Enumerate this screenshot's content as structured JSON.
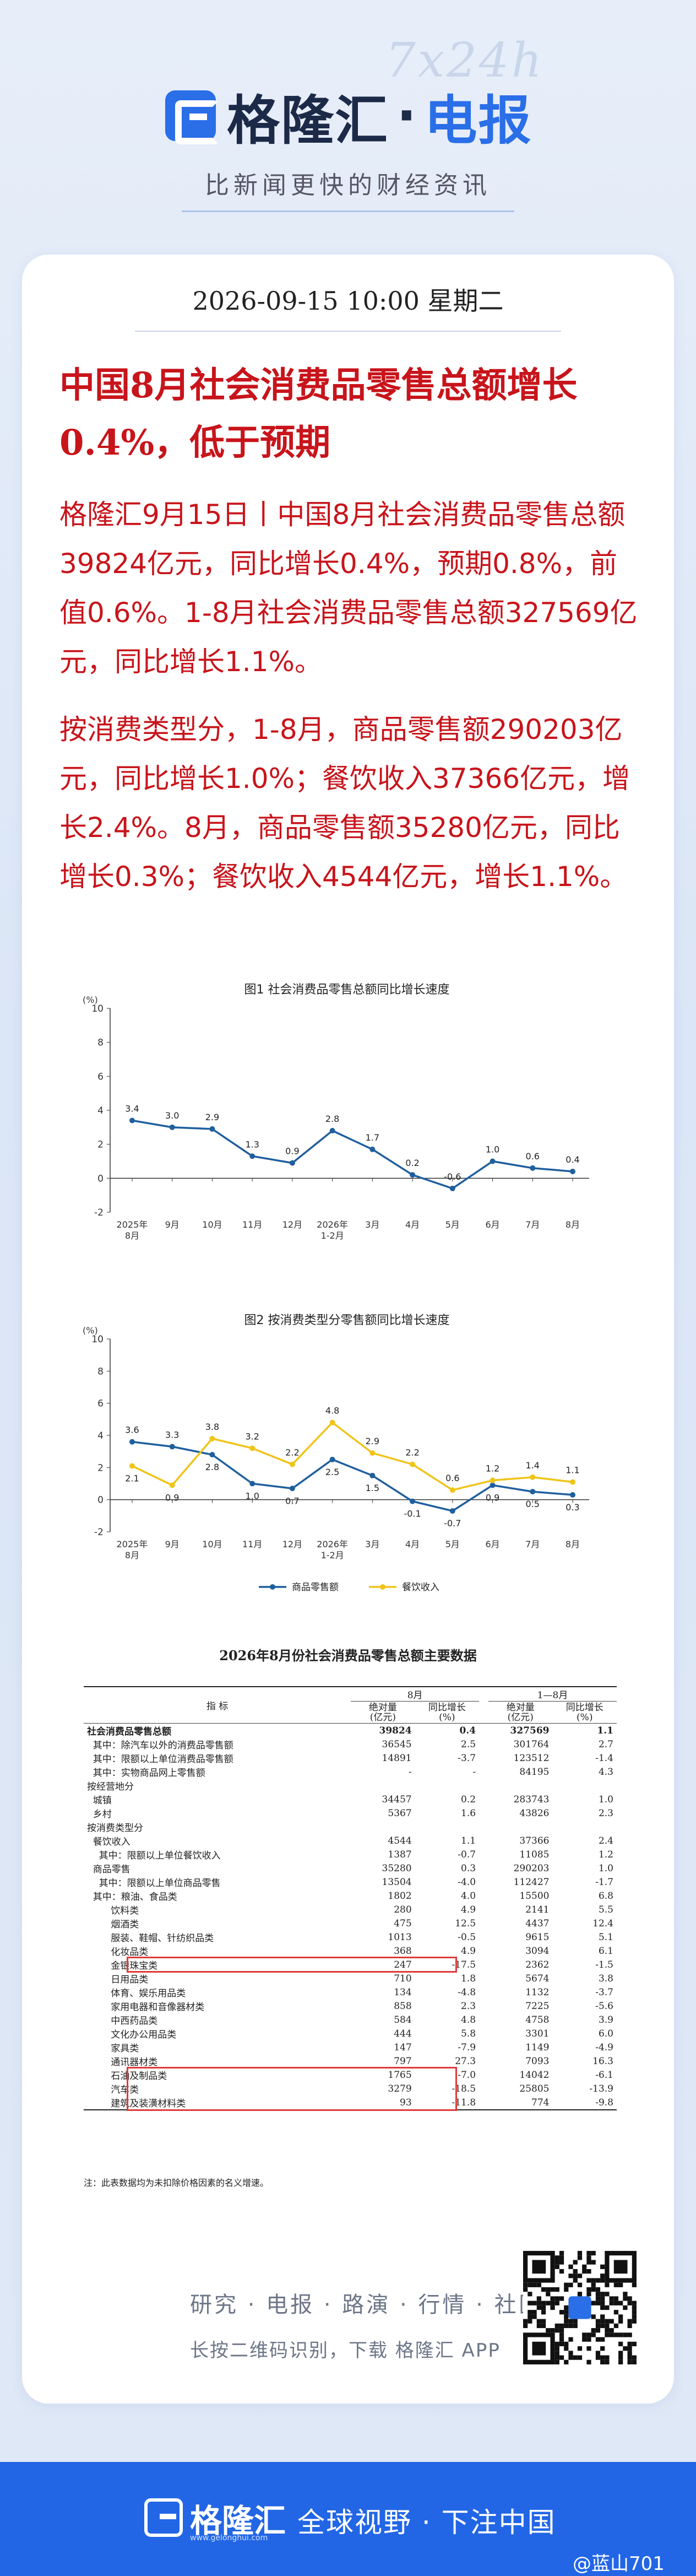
{
  "header": {
    "watermark": "7x24h",
    "brand_name": "格隆汇",
    "brand_dot": "·",
    "brand_sub": "电报",
    "tagline": "比新闻更快的财经资讯"
  },
  "article": {
    "datetime": "2026-09-15 10:00 星期二",
    "headline": "中国8月社会消费品零售总额增长0.4%，低于预期",
    "para1": "格隆汇9月15日丨中国8月社会消费品零售总额39824亿元，同比增长0.4%，预期0.8%，前值0.6%。1-8月社会消费品零售总额327569亿元，同比增长1.1%。",
    "para2": "按消费类型分，1-8月，商品零售额290203亿元，同比增长1.0%；餐饮收入37366亿元，增长2.4%。8月，商品零售额35280亿元，同比增长0.3%；餐饮收入4544亿元，增长1.1%。"
  },
  "chart_data": [
    {
      "type": "line",
      "title": "图1  社会消费品零售总额同比增长速度",
      "ylabel": "(%)",
      "ylim": [
        -2,
        10
      ],
      "yticks": [
        -2,
        0,
        2,
        4,
        6,
        8,
        10
      ],
      "categories": [
        "2025年\n8月",
        "9月",
        "10月",
        "11月",
        "12月",
        "2026年\n1-2月",
        "3月",
        "4月",
        "5月",
        "6月",
        "7月",
        "8月"
      ],
      "series": [
        {
          "values": [
            3.4,
            3.0,
            2.9,
            1.3,
            0.9,
            2.8,
            1.7,
            0.2,
            -0.6,
            1.0,
            0.6,
            0.4
          ],
          "color": "#1f5f9e"
        }
      ],
      "grid": false
    },
    {
      "type": "line",
      "title": "图2  按消费类型分零售额同比增长速度",
      "ylabel": "(%)",
      "ylim": [
        -2,
        10
      ],
      "yticks": [
        -2,
        0,
        2,
        4,
        6,
        8,
        10
      ],
      "categories": [
        "2025年\n8月",
        "9月",
        "10月",
        "11月",
        "12月",
        "2026年\n1-2月",
        "3月",
        "4月",
        "5月",
        "6月",
        "7月",
        "8月"
      ],
      "series": [
        {
          "name": "商品零售额",
          "values": [
            3.6,
            3.3,
            2.8,
            1.0,
            0.7,
            2.5,
            1.5,
            -0.1,
            -0.7,
            0.9,
            0.5,
            0.3
          ],
          "color": "#1f5f9e"
        },
        {
          "name": "餐饮收入",
          "values": [
            2.1,
            0.9,
            3.8,
            3.2,
            2.2,
            4.8,
            2.9,
            2.2,
            0.6,
            1.2,
            1.4,
            1.1
          ],
          "color": "#f0c419"
        }
      ],
      "legend": "bottom",
      "grid": false
    },
    {
      "type": "table",
      "title": "2026年8月份社会消费品零售总额主要数据",
      "header": {
        "indicator": "指    标",
        "group_month": "8月",
        "group_ytd": "1—8月",
        "abs_value": "绝对量\n(亿元)",
        "yoy": "同比增长\n(%)"
      },
      "rows": [
        {
          "label": "社会消费品零售总额",
          "m_abs": "39824",
          "m_yoy": "0.4",
          "y_abs": "327569",
          "y_yoy": "1.1",
          "bold": true
        },
        {
          "label": "  其中：除汽车以外的消费品零售额",
          "m_abs": "36545",
          "m_yoy": "2.5",
          "y_abs": "301764",
          "y_yoy": "2.7"
        },
        {
          "label": "  其中：限额以上单位消费品零售额",
          "m_abs": "14891",
          "m_yoy": "-3.7",
          "y_abs": "123512",
          "y_yoy": "-1.4"
        },
        {
          "label": "  其中：实物商品网上零售额",
          "m_abs": "-",
          "m_yoy": "-",
          "y_abs": "84195",
          "y_yoy": "4.3"
        },
        {
          "label": "按经营地分",
          "m_abs": "",
          "m_yoy": "",
          "y_abs": "",
          "y_yoy": ""
        },
        {
          "label": "  城镇",
          "m_abs": "34457",
          "m_yoy": "0.2",
          "y_abs": "283743",
          "y_yoy": "1.0"
        },
        {
          "label": "  乡村",
          "m_abs": "5367",
          "m_yoy": "1.6",
          "y_abs": "43826",
          "y_yoy": "2.3"
        },
        {
          "label": "按消费类型分",
          "m_abs": "",
          "m_yoy": "",
          "y_abs": "",
          "y_yoy": ""
        },
        {
          "label": "  餐饮收入",
          "m_abs": "4544",
          "m_yoy": "1.1",
          "y_abs": "37366",
          "y_yoy": "2.4"
        },
        {
          "label": "    其中：限额以上单位餐饮收入",
          "m_abs": "1387",
          "m_yoy": "-0.7",
          "y_abs": "11085",
          "y_yoy": "1.2"
        },
        {
          "label": "  商品零售",
          "m_abs": "35280",
          "m_yoy": "0.3",
          "y_abs": "290203",
          "y_yoy": "1.0"
        },
        {
          "label": "    其中：限额以上单位商品零售",
          "m_abs": "13504",
          "m_yoy": "-4.0",
          "y_abs": "112427",
          "y_yoy": "-1.7"
        },
        {
          "label": "  其中：粮油、食品类",
          "m_abs": "1802",
          "m_yoy": "4.0",
          "y_abs": "15500",
          "y_yoy": "6.8"
        },
        {
          "label": "        饮料类",
          "m_abs": "280",
          "m_yoy": "4.9",
          "y_abs": "2141",
          "y_yoy": "5.5"
        },
        {
          "label": "        烟酒类",
          "m_abs": "475",
          "m_yoy": "12.5",
          "y_abs": "4437",
          "y_yoy": "12.4"
        },
        {
          "label": "        服装、鞋帽、针纺织品类",
          "m_abs": "1013",
          "m_yoy": "-0.5",
          "y_abs": "9615",
          "y_yoy": "5.1"
        },
        {
          "label": "        化妆品类",
          "m_abs": "368",
          "m_yoy": "4.9",
          "y_abs": "3094",
          "y_yoy": "6.1"
        },
        {
          "label": "        金银珠宝类",
          "m_abs": "247",
          "m_yoy": "-17.5",
          "y_abs": "2362",
          "y_yoy": "-1.5"
        },
        {
          "label": "        日用品类",
          "m_abs": "710",
          "m_yoy": "1.8",
          "y_abs": "5674",
          "y_yoy": "3.8"
        },
        {
          "label": "        体育、娱乐用品类",
          "m_abs": "134",
          "m_yoy": "-4.8",
          "y_abs": "1132",
          "y_yoy": "-3.7"
        },
        {
          "label": "        家用电器和音像器材类",
          "m_abs": "858",
          "m_yoy": "2.3",
          "y_abs": "7225",
          "y_yoy": "-5.6"
        },
        {
          "label": "        中西药品类",
          "m_abs": "584",
          "m_yoy": "4.8",
          "y_abs": "4758",
          "y_yoy": "3.9"
        },
        {
          "label": "        文化办公用品类",
          "m_abs": "444",
          "m_yoy": "5.8",
          "y_abs": "3301",
          "y_yoy": "6.0"
        },
        {
          "label": "        家具类",
          "m_abs": "147",
          "m_yoy": "-7.9",
          "y_abs": "1149",
          "y_yoy": "-4.9"
        },
        {
          "label": "        通讯器材类",
          "m_abs": "797",
          "m_yoy": "27.3",
          "y_abs": "7093",
          "y_yoy": "16.3"
        },
        {
          "label": "        石油及制品类",
          "m_abs": "1765",
          "m_yoy": "-7.0",
          "y_abs": "14042",
          "y_yoy": "-6.1"
        },
        {
          "label": "        汽车类",
          "m_abs": "3279",
          "m_yoy": "-18.5",
          "y_abs": "25805",
          "y_yoy": "-13.9"
        },
        {
          "label": "        建筑及装潢材料类",
          "m_abs": "93",
          "m_yoy": "-11.8",
          "y_abs": "774",
          "y_yoy": "-9.8"
        }
      ],
      "note": "注：此表数据均为未扣除价格因素的名义增速。"
    }
  ],
  "footer": {
    "links": "研究 · 电报 · 路演 · 行情 · 社区",
    "scan_note": "长按二维码识别，下载 格隆汇 APP",
    "brand": "格隆汇",
    "domain": "www.gelonghui.com",
    "slogan": "全球视野 · 下注中国",
    "weibo": "@蓝山701"
  },
  "colors": {
    "headline": "#c8141b",
    "brand_blue": "#2a6ee8",
    "series_blue": "#1f5f9e",
    "series_yellow": "#f0c419",
    "highlight_box": "#e03a3a"
  }
}
